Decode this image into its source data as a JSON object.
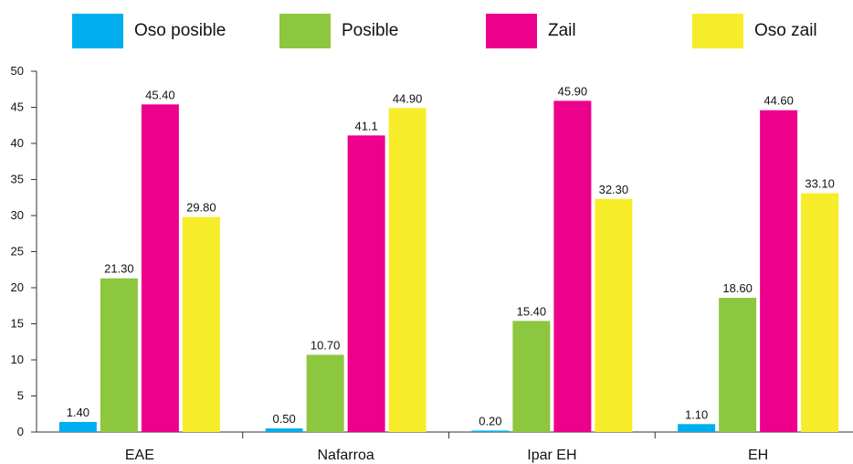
{
  "chart_data": {
    "type": "bar",
    "categories": [
      "EAE",
      "Nafarroa",
      "Ipar EH",
      "EH"
    ],
    "series": [
      {
        "name": "Oso posible",
        "color": "#00aeef",
        "values": [
          1.4,
          0.5,
          0.2,
          1.1
        ],
        "labels": [
          "1.40",
          "0.50",
          "0.20",
          "1.10"
        ]
      },
      {
        "name": "Posible",
        "color": "#8dc63f",
        "values": [
          21.3,
          10.7,
          15.4,
          18.6
        ],
        "labels": [
          "21.30",
          "10.70",
          "15.40",
          "18.60"
        ]
      },
      {
        "name": "Zail",
        "color": "#ec008c",
        "values": [
          45.4,
          41.1,
          45.9,
          44.6
        ],
        "labels": [
          "45.40",
          "41.1",
          "45.90",
          "44.60"
        ]
      },
      {
        "name": "Oso zail",
        "color": "#f7ec2a",
        "values": [
          29.8,
          44.9,
          32.3,
          33.1
        ],
        "labels": [
          "29.80",
          "44.90",
          "32.30",
          "33.10"
        ]
      }
    ],
    "yticks": [
      "0",
      "5",
      "10",
      "15",
      "20",
      "25",
      "30",
      "35",
      "40",
      "45",
      "50"
    ],
    "ylim": [
      0,
      50
    ],
    "grid": false,
    "legend_position": "top"
  }
}
